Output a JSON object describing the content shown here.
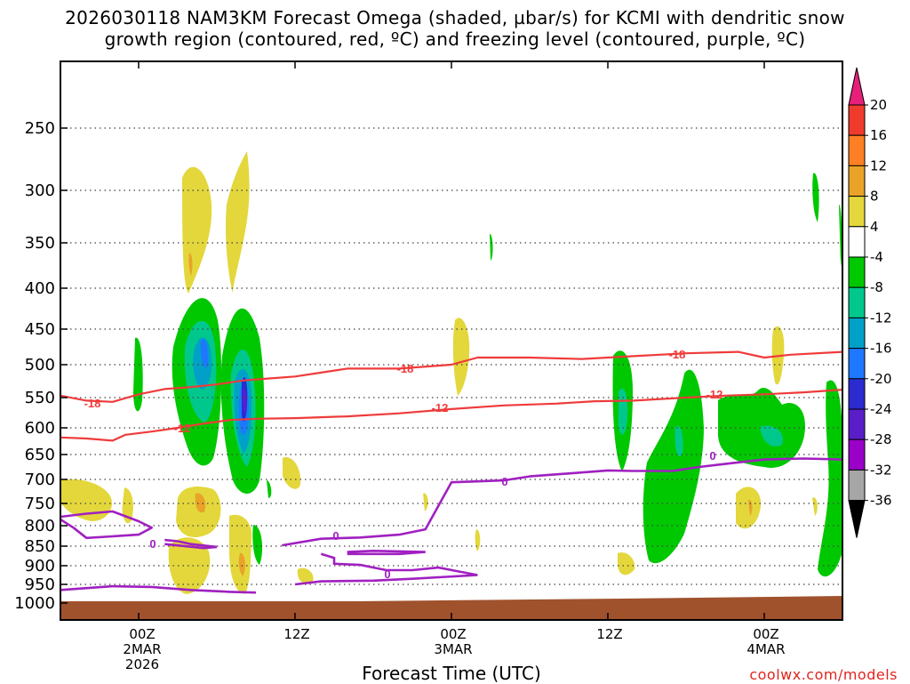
{
  "chart_data": {
    "type": "time-height cross section",
    "title": {
      "line1": "2026030118 NAM3KM Forecast Omega (shaded, µbar/s) for KCMI with dendritic snow",
      "line2": "growth region (contoured, red, ºC) and freezing level (contoured, purple, ºC)"
    },
    "xlabel": "Forecast Time (UTC)",
    "ylabel": "",
    "y_ticks": [
      "250",
      "300",
      "350",
      "400",
      "450",
      "500",
      "550",
      "600",
      "650",
      "700",
      "750",
      "800",
      "850",
      "900",
      "950",
      "1000"
    ],
    "x_ticks": [
      {
        "hour": 0,
        "line1": "00Z",
        "line2": "2MAR",
        "line3": "2026"
      },
      {
        "hour": 12,
        "line1": "12Z",
        "line2": "",
        "line3": ""
      },
      {
        "hour": 24,
        "line1": "00Z",
        "line2": "3MAR",
        "line3": ""
      },
      {
        "hour": 36,
        "line1": "12Z",
        "line2": "",
        "line3": ""
      },
      {
        "hour": 48,
        "line1": "00Z",
        "line2": "4MAR",
        "line3": ""
      }
    ],
    "xlim_hours": [
      -6,
      54
    ],
    "ylim_hpa": [
      1020,
      200
    ],
    "colorbar": {
      "labels": [
        "20",
        "16",
        "12",
        "8",
        "4",
        "-4",
        "-8",
        "-12",
        "-16",
        "-20",
        "-24",
        "-28",
        "-32",
        "-36"
      ],
      "colors": [
        "#e8207a",
        "#ef3b2c",
        "#ff7f24",
        "#e9a329",
        "#e3d73c",
        "#ffffff",
        "#00c800",
        "#00c88c",
        "#00a0c8",
        "#1e78ff",
        "#2b2bd0",
        "#5a1ec8",
        "#9a00c8",
        "#a6a6a6",
        "#000000"
      ]
    },
    "contours": {
      "dgz_minus12": {
        "label": "-12",
        "color": "#ef3b3b",
        "points": [
          [
            -6,
            618
          ],
          [
            -4,
            620
          ],
          [
            -2,
            624
          ],
          [
            -1,
            613
          ],
          [
            1,
            607
          ],
          [
            3,
            600
          ],
          [
            5,
            593
          ],
          [
            7,
            587
          ],
          [
            9,
            585
          ],
          [
            12,
            584
          ],
          [
            16,
            581
          ],
          [
            20,
            576
          ],
          [
            24,
            569
          ],
          [
            28,
            563
          ],
          [
            32,
            560
          ],
          [
            35,
            556
          ],
          [
            38,
            555
          ],
          [
            42,
            550
          ],
          [
            45,
            547
          ],
          [
            48,
            545
          ],
          [
            51,
            542
          ],
          [
            54,
            538
          ]
        ]
      },
      "dgz_minus18": {
        "label": "-18",
        "color": "#ef3b3b",
        "points": [
          [
            -6,
            547
          ],
          [
            -4,
            555
          ],
          [
            -2,
            557
          ],
          [
            0,
            545
          ],
          [
            2,
            537
          ],
          [
            4,
            534
          ],
          [
            6,
            530
          ],
          [
            8,
            524
          ],
          [
            10,
            521
          ],
          [
            12,
            518
          ],
          [
            14,
            512
          ],
          [
            16,
            506
          ],
          [
            20,
            506
          ],
          [
            24,
            500
          ],
          [
            26,
            490
          ],
          [
            30,
            490
          ],
          [
            34,
            492
          ],
          [
            38,
            488
          ],
          [
            42,
            484
          ],
          [
            46,
            482
          ],
          [
            48,
            490
          ],
          [
            50,
            486
          ],
          [
            54,
            482
          ]
        ]
      },
      "freezing_level": {
        "label": "0",
        "color": "#a020c0",
        "points": [
          [
            -6,
            780
          ],
          [
            -4,
            773
          ],
          [
            -2,
            768
          ],
          [
            0,
            790
          ],
          [
            1,
            805
          ],
          [
            0,
            822
          ],
          [
            -2,
            826
          ],
          [
            -4,
            830
          ],
          [
            -5,
            805
          ],
          [
            -6,
            786
          ]
        ]
      },
      "freezing_level_main": {
        "label": "0",
        "color": "#a020c0",
        "points": [
          [
            11,
            848
          ],
          [
            14,
            832
          ],
          [
            17,
            829
          ],
          [
            20,
            822
          ],
          [
            22,
            809
          ],
          [
            24,
            706
          ],
          [
            26,
            704
          ],
          [
            28,
            702
          ],
          [
            30,
            694
          ],
          [
            33,
            688
          ],
          [
            36,
            682
          ],
          [
            38,
            683
          ],
          [
            41,
            683
          ],
          [
            43,
            675
          ],
          [
            45,
            669
          ],
          [
            48,
            660
          ],
          [
            51,
            658
          ],
          [
            54,
            660
          ]
        ]
      }
    },
    "label_precipitation_units": "µbar/s",
    "colorbar_min_label": "-36",
    "colorbar_max_label": "20",
    "contour_labels": [
      "-18",
      "-12",
      "-18",
      "-12",
      "-12",
      "-18",
      "0",
      "0",
      "0",
      "0"
    ]
  },
  "ticks": {
    "h0_a": "00Z",
    "h0_b": "2MAR",
    "h0_c": "2026",
    "h12": "12Z",
    "h24_a": "00Z",
    "h24_b": "3MAR",
    "h36": "12Z",
    "h48_a": "00Z",
    "h48_b": "4MAR"
  },
  "credit": "coolwx.com/models"
}
